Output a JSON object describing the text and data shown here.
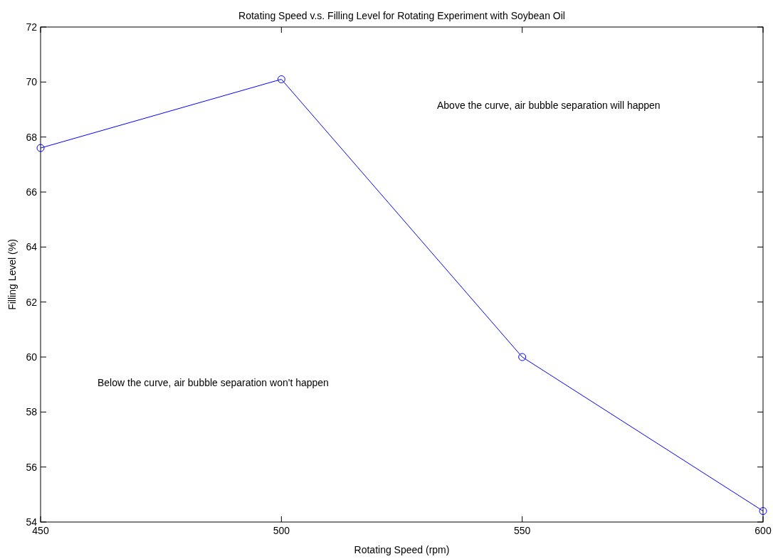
{
  "chart_data": {
    "type": "line",
    "title": "Rotating Speed v.s. Filling Level for Rotating Experiment with Soybean Oil",
    "xlabel": "Rotating Speed (rpm)",
    "ylabel": "Filling Level (%)",
    "x": [
      450,
      500,
      550,
      600
    ],
    "series": [
      {
        "color": "#0000ff",
        "values": [
          67.6,
          70.1,
          60.0,
          54.4
        ]
      }
    ],
    "xlim": [
      450,
      600
    ],
    "xticks": [
      450,
      500,
      550,
      600
    ],
    "ylim": [
      54,
      72
    ],
    "yticks": [
      54,
      56,
      58,
      60,
      62,
      64,
      66,
      68,
      70,
      72
    ],
    "marker": "circle",
    "line_style": "solid",
    "grid": false,
    "annotations": [
      "Above the curve, air bubble separation will happen",
      "Below the curve, air bubble separation won't happen"
    ]
  }
}
